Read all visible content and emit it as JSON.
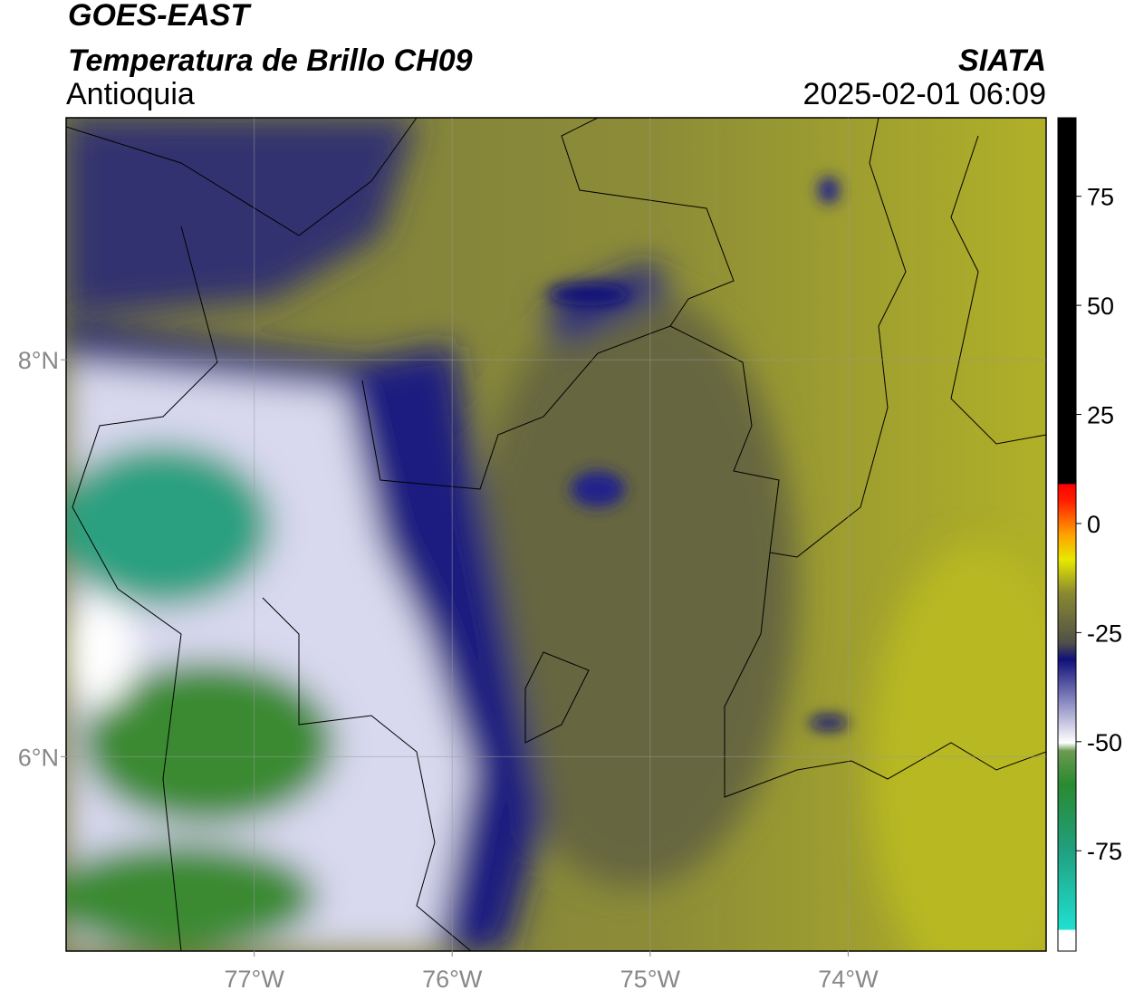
{
  "header": {
    "title": "GOES-EAST",
    "subtitle": "Temperatura de Brillo CH09",
    "region": "Antioquia",
    "source": "SIATA",
    "datetime": "2025-02-01 06:09"
  },
  "map": {
    "xlim": [
      -77.95,
      -73.0
    ],
    "ylim": [
      5.02,
      9.22
    ],
    "xticks": [
      {
        "value": -77,
        "label": "77°W"
      },
      {
        "value": -76,
        "label": "76°W"
      },
      {
        "value": -75,
        "label": "75°W"
      },
      {
        "value": -74,
        "label": "74°W"
      }
    ],
    "yticks": [
      {
        "value": 6,
        "label": "6°N"
      },
      {
        "value": 8,
        "label": "8°N"
      }
    ],
    "grid": true
  },
  "colorbar": {
    "lim": [
      -98,
      93
    ],
    "ticks": [
      75,
      50,
      25,
      0,
      -25,
      -50,
      -75
    ]
  }
}
